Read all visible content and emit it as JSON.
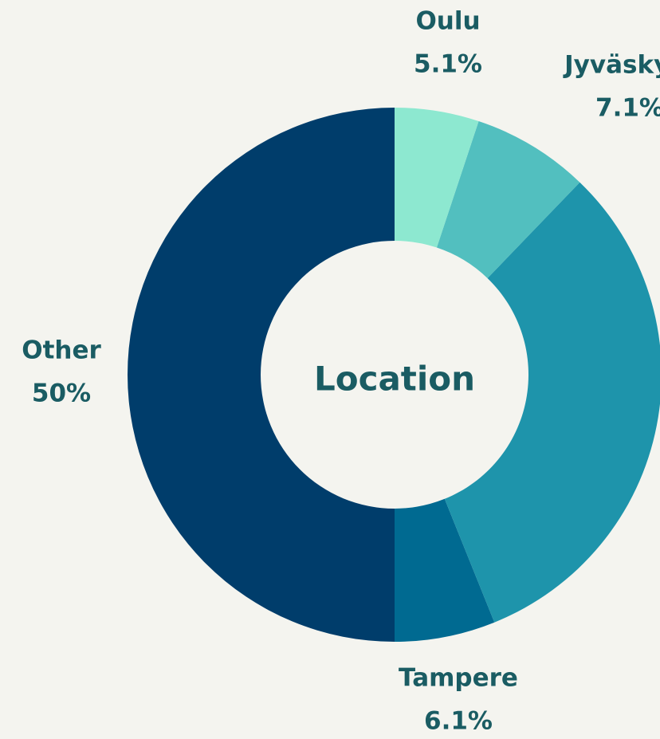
{
  "chart_data": {
    "type": "donut",
    "center_label": "Location",
    "categories": [
      "Oulu",
      "Jyväskylä",
      null,
      "Tampere",
      "Other"
    ],
    "values": [
      5.1,
      7.1,
      31.7,
      6.1,
      50
    ],
    "value_labels": [
      "5.1%",
      "7.1%",
      null,
      "6.1%",
      "50%"
    ],
    "colors": [
      "#8de8d0",
      "#52bfbf",
      "#1e94ab",
      "#006a91",
      "#003d6b"
    ]
  }
}
